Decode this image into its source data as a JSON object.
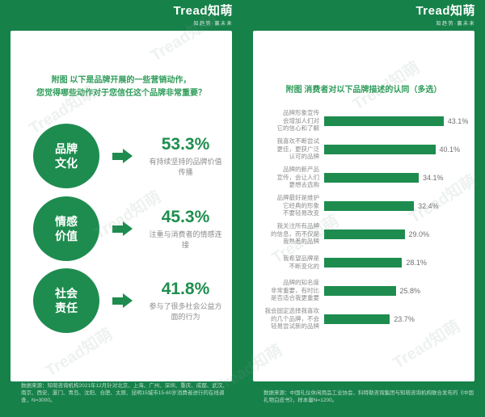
{
  "brand": {
    "logo_text": "Tread知萌",
    "tagline": "知趋势·赢未来",
    "watermark_text": "Tread知萌"
  },
  "colors": {
    "background_green": "#17814A",
    "element_green": "#1E8C4F",
    "title_green": "#2F9C5A",
    "label_gray": "#8C8C8C"
  },
  "chart_data": [
    {
      "type": "bar",
      "title": "附图 以下是品牌开展的一些营销动作，您觉得哪些动作对于您信任这个品牌非常重要？",
      "categories": [
        "品牌文化",
        "情感价值",
        "社会责任"
      ],
      "values": [
        53.3,
        45.3,
        41.8
      ],
      "annotations": [
        "有持续坚持的品牌价值传播",
        "注重与消费者的情感连接",
        "参与了很多社会公益方面的行为"
      ],
      "unit": "%",
      "legend_position": "none"
    },
    {
      "type": "bar",
      "orientation": "horizontal",
      "title": "附图 消费者对以下品牌描述的认同（多选）",
      "categories": [
        "品牌形象宣传会增加人们对它的信心和了解",
        "我喜欢不断尝试更佳，更获广泛认可的品牌",
        "品牌的新产品宣传，会让人们更想去选购",
        "品牌最好是维护它经典的形象不要轻易改变",
        "我关注所有品牌的信息，而不仅是我熟悉的品牌",
        "我希望品牌是不断变化的",
        "品牌的知名度非常重要，有时比是否适合我更重要",
        "我会固定选择我喜欢的几个品牌，不会轻易尝试新的品牌"
      ],
      "values": [
        43.1,
        40.1,
        34.1,
        32.4,
        29.0,
        28.1,
        25.8,
        23.7
      ],
      "unit": "%",
      "xlim": [
        0,
        50
      ],
      "grid": false,
      "legend_position": "none"
    }
  ],
  "left": {
    "title_line1": "附图 以下是品牌开展的一些营销动作，",
    "title_line2": "您觉得哪些动作对于您信任这个品牌非常重要？",
    "rows": [
      {
        "circle_line1": "品牌",
        "circle_line2": "文化",
        "value_label": "53.3%",
        "desc": "有持续坚持的品牌价值传播"
      },
      {
        "circle_line1": "情感",
        "circle_line2": "价值",
        "value_label": "45.3%",
        "desc": "注重与消费者的情感连接"
      },
      {
        "circle_line1": "社会",
        "circle_line2": "责任",
        "value_label": "41.8%",
        "desc": "参与了很多社会公益方面的行为"
      }
    ],
    "footnote": "数据来源：知萌咨询机构2021年12月针对北京、上海、广州、深圳、重庆、成都、武汉、南京、西安、厦门、青岛、沈阳、合肥、太原、昆明15城市15-60岁消费者进行的在线调查，N=3000。"
  },
  "right": {
    "title": "附图 消费者对以下品牌描述的认同（多选）",
    "bars": [
      {
        "label_lines": [
          "品牌形象宣传",
          "会增加人们对",
          "它的信心和了解"
        ],
        "value": 43.1,
        "value_label": "43.1%"
      },
      {
        "label_lines": [
          "我喜欢不断尝试",
          "更佳，更获广泛",
          "认可的品牌"
        ],
        "value": 40.1,
        "value_label": "40.1%"
      },
      {
        "label_lines": [
          "品牌的新产品",
          "宣传，会让人们",
          "更想去选购"
        ],
        "value": 34.1,
        "value_label": "34.1%"
      },
      {
        "label_lines": [
          "品牌最好是维护",
          "它经典的形象",
          "不要轻易改变"
        ],
        "value": 32.4,
        "value_label": "32.4%"
      },
      {
        "label_lines": [
          "我关注所有品牌",
          "的信息，而不仅是",
          "我熟悉的品牌"
        ],
        "value": 29.0,
        "value_label": "29.0%"
      },
      {
        "label_lines": [
          "我希望品牌是",
          "不断变化的"
        ],
        "value": 28.1,
        "value_label": "28.1%"
      },
      {
        "label_lines": [
          "品牌的知名度",
          "非常重要，有时比",
          "是否适合我更重要"
        ],
        "value": 25.8,
        "value_label": "25.8%"
      },
      {
        "label_lines": [
          "我会固定选择我喜欢",
          "的几个品牌，不会",
          "轻易尝试新的品牌"
        ],
        "value": 23.7,
        "value_label": "23.7%"
      }
    ],
    "footnote": "数据来源：中国礼仪休闲用品工业协会、科特勒咨询集团与知萌咨询机构联合发布的《中国礼物白皮书》，样本量N=1200。"
  }
}
